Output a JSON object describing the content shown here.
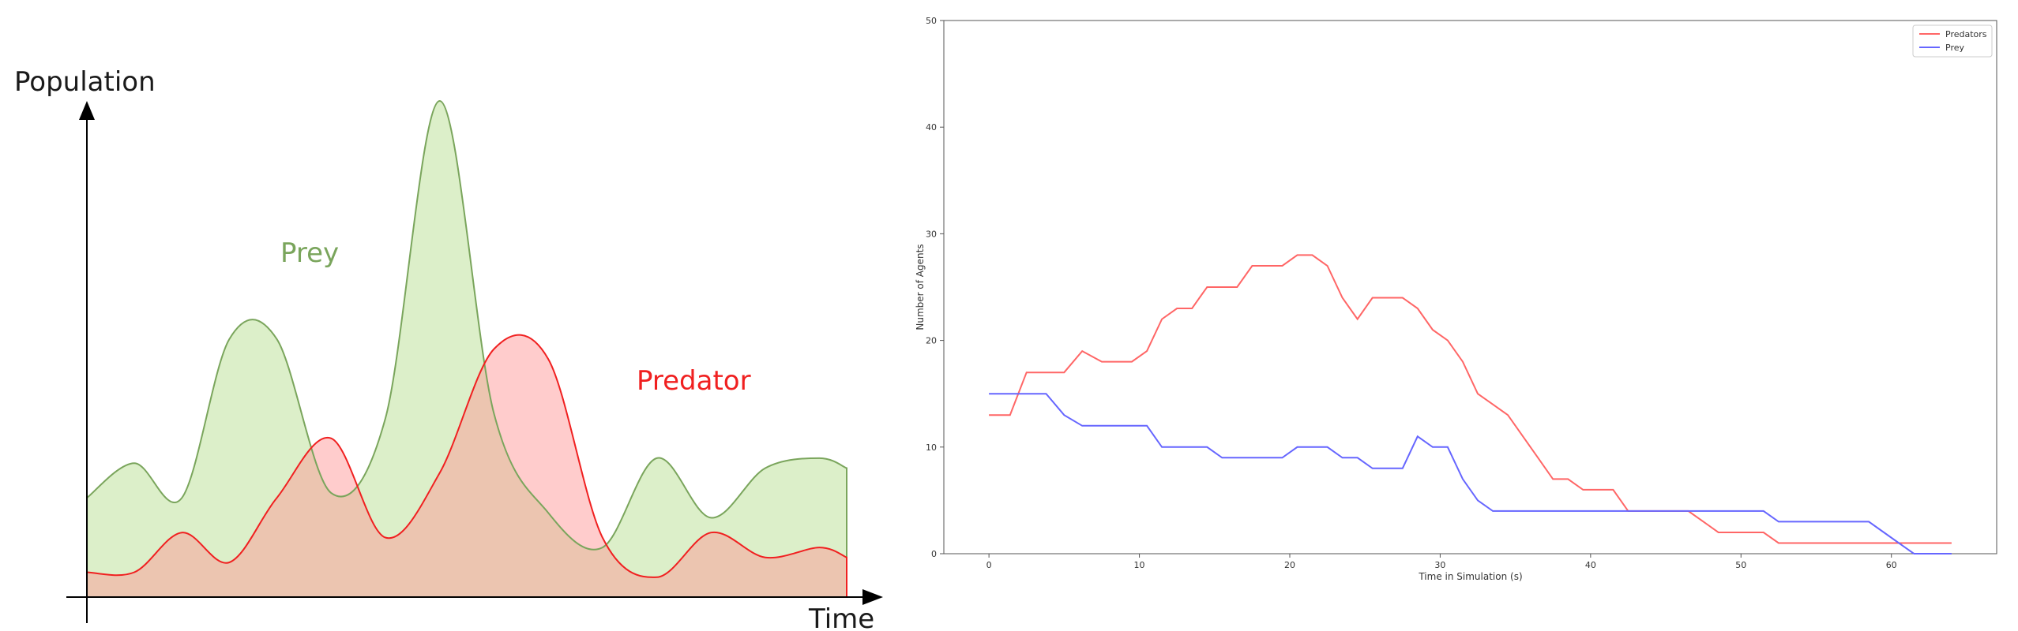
{
  "chart_data": [
    {
      "type": "area",
      "xlabel": "Time",
      "ylabel": "Population",
      "grid": false,
      "legend": "inline-labels",
      "colors": {
        "prey_line": "#7aa55c",
        "prey_fill": "#dcefc9",
        "predator_line": "#f02020",
        "predator_fill": "#ffcccc",
        "overlap_fill": "#ecc5b0",
        "prey_label": "#7aa55c",
        "predator_label": "#f02020"
      },
      "x": [
        0,
        3.5,
        7,
        10.5,
        14,
        18,
        22,
        26,
        30,
        34,
        38,
        42,
        46,
        50,
        54,
        56
      ],
      "series": [
        {
          "name": "Prey",
          "values": [
            20,
            27,
            20,
            52,
            52,
            21,
            36,
            100,
            37,
            17,
            10,
            28,
            16,
            26,
            28,
            26
          ]
        },
        {
          "name": "Predator",
          "values": [
            5,
            5,
            13,
            7,
            20,
            32,
            12,
            25,
            50,
            48,
            12,
            4,
            13,
            8,
            10,
            8
          ]
        }
      ]
    },
    {
      "type": "line",
      "xlabel": "Time in Simulation (s)",
      "ylabel": "Number of Agents",
      "xlim": [
        -3,
        67
      ],
      "ylim": [
        0,
        50
      ],
      "xticks": [
        0,
        10,
        20,
        30,
        40,
        50,
        60
      ],
      "yticks": [
        0,
        10,
        20,
        30,
        40,
        50
      ],
      "grid": false,
      "legend": "top-right",
      "series": [
        {
          "name": "Predators",
          "color": "#ff6666",
          "x": [
            0,
            1.4,
            2.5,
            4.8,
            5,
            6.2,
            7.5,
            8.5,
            9.5,
            10.5,
            11.5,
            12.5,
            13.5,
            14,
            14.5,
            15.5,
            16.5,
            17.5,
            18.5,
            19.5,
            20.5,
            21.5,
            22.5,
            23.5,
            24.5,
            25.5,
            26.5,
            27.5,
            28.5,
            29.5,
            30.5,
            31.5,
            32.5,
            33.5,
            34.5,
            35.5,
            36.5,
            37.5,
            38.5,
            39.5,
            40.5,
            41.5,
            42.5,
            43.5,
            44.5,
            45.5,
            46.5,
            47.5,
            48.5,
            49.5,
            50.5,
            51.5,
            52.5,
            53.5,
            55,
            60,
            64
          ],
          "y": [
            13,
            13,
            17,
            17,
            17,
            19,
            18,
            18,
            18,
            19,
            22,
            23,
            23,
            24,
            25,
            25,
            25,
            27,
            27,
            27,
            28,
            28,
            27,
            24,
            22,
            24,
            24,
            24,
            23,
            21,
            20,
            18,
            15,
            14,
            13,
            11,
            9,
            7,
            7,
            6,
            6,
            6,
            4,
            4,
            4,
            4,
            4,
            3,
            2,
            2,
            2,
            2,
            1,
            1,
            1,
            1,
            1
          ]
        },
        {
          "name": "Prey",
          "color": "#6666ff",
          "x": [
            0,
            1.5,
            2.5,
            3.8,
            5,
            6.2,
            7.5,
            8.5,
            9.5,
            10.5,
            11.5,
            12.5,
            13.5,
            14.5,
            15.5,
            16.5,
            17.5,
            18.5,
            19.5,
            20.5,
            21.5,
            22.5,
            23.5,
            24.5,
            25.5,
            26.5,
            27.5,
            28.5,
            29.5,
            30.5,
            31.5,
            32.5,
            33.5,
            34.5,
            35.5,
            36.5,
            37.5,
            38.5,
            39.5,
            40.5,
            41.5,
            42.5,
            43.5,
            44.5,
            45.5,
            46.5,
            47.5,
            48.5,
            49.5,
            50.5,
            51.5,
            52.5,
            53.5,
            54.5,
            55.5,
            56.5,
            57.5,
            58.5,
            59.5,
            60.5,
            61.5,
            64
          ],
          "y": [
            15,
            15,
            15,
            15,
            13,
            12,
            12,
            12,
            12,
            12,
            10,
            10,
            10,
            10,
            9,
            9,
            9,
            9,
            9,
            10,
            10,
            10,
            9,
            9,
            8,
            8,
            8,
            11,
            10,
            10,
            7,
            5,
            4,
            4,
            4,
            4,
            4,
            4,
            4,
            4,
            4,
            4,
            4,
            4,
            4,
            4,
            4,
            4,
            4,
            4,
            4,
            3,
            3,
            3,
            3,
            3,
            3,
            3,
            2,
            1,
            0,
            0
          ]
        }
      ]
    }
  ]
}
